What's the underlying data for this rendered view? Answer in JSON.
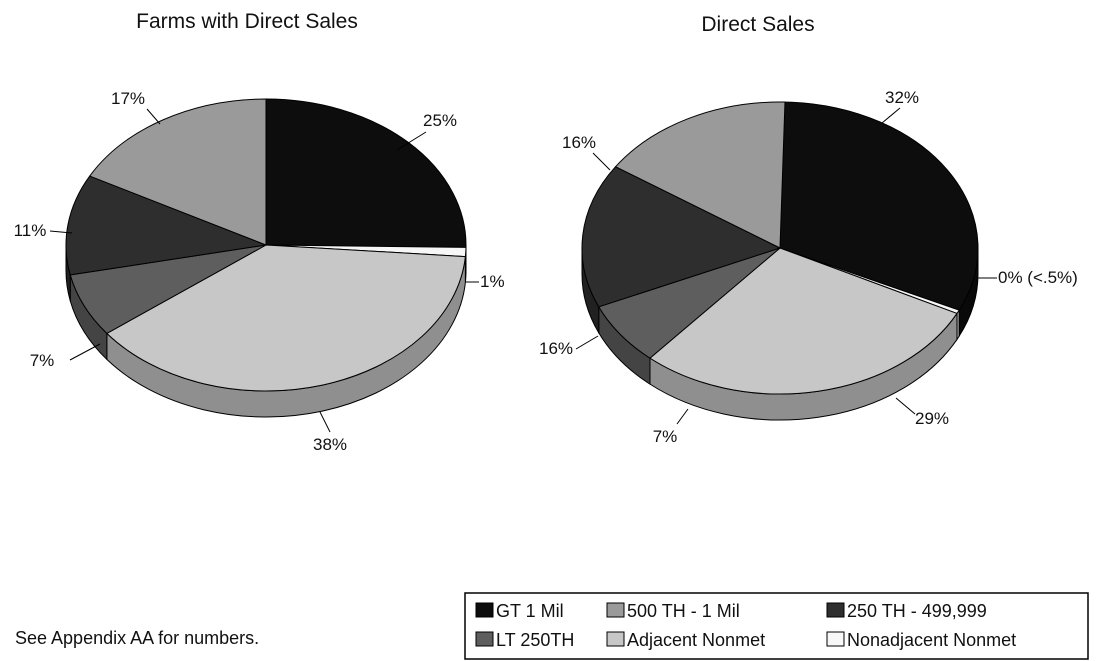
{
  "chart_data": [
    {
      "type": "pie",
      "title": "Farms with Direct Sales",
      "categories": [
        "GT 1 Mil",
        "Nonadjacent Nonmet",
        "Adjacent Nonmet",
        "LT 250TH",
        "250 TH - 499,999",
        "500 TH - 1 Mil"
      ],
      "values": [
        25,
        1,
        38,
        7,
        11,
        17
      ],
      "labels": [
        "25%",
        "1%",
        "38%",
        "7%",
        "11%",
        "17%"
      ],
      "colors": [
        "#0d0d0d",
        "#f7f7f7",
        "#c7c7c7",
        "#5e5e5e",
        "#2e2e2e",
        "#9a9a9a"
      ]
    },
    {
      "type": "pie",
      "title": "Direct Sales",
      "categories": [
        "GT 1 Mil",
        "Nonadjacent Nonmet",
        "Adjacent Nonmet",
        "LT 250TH",
        "250 TH - 499,999",
        "500 TH - 1 Mil"
      ],
      "values": [
        32,
        0,
        29,
        7,
        16,
        16
      ],
      "labels": [
        "32%",
        "0% (<.5%)",
        "29%",
        "7%",
        "16%",
        "16%"
      ],
      "colors": [
        "#0d0d0d",
        "#f7f7f7",
        "#c7c7c7",
        "#5e5e5e",
        "#2e2e2e",
        "#9a9a9a"
      ]
    }
  ],
  "legend": {
    "entries": [
      {
        "label": "GT 1 Mil",
        "color": "#0d0d0d"
      },
      {
        "label": "500 TH - 1 Mil",
        "color": "#9a9a9a"
      },
      {
        "label": "250 TH - 499,999",
        "color": "#2e2e2e"
      },
      {
        "label": "LT 250TH",
        "color": "#5e5e5e"
      },
      {
        "label": "Adjacent Nonmet",
        "color": "#c7c7c7"
      },
      {
        "label": "Nonadjacent Nonmet",
        "color": "#f7f7f7"
      }
    ]
  },
  "footnote": "See Appendix AA for numbers."
}
